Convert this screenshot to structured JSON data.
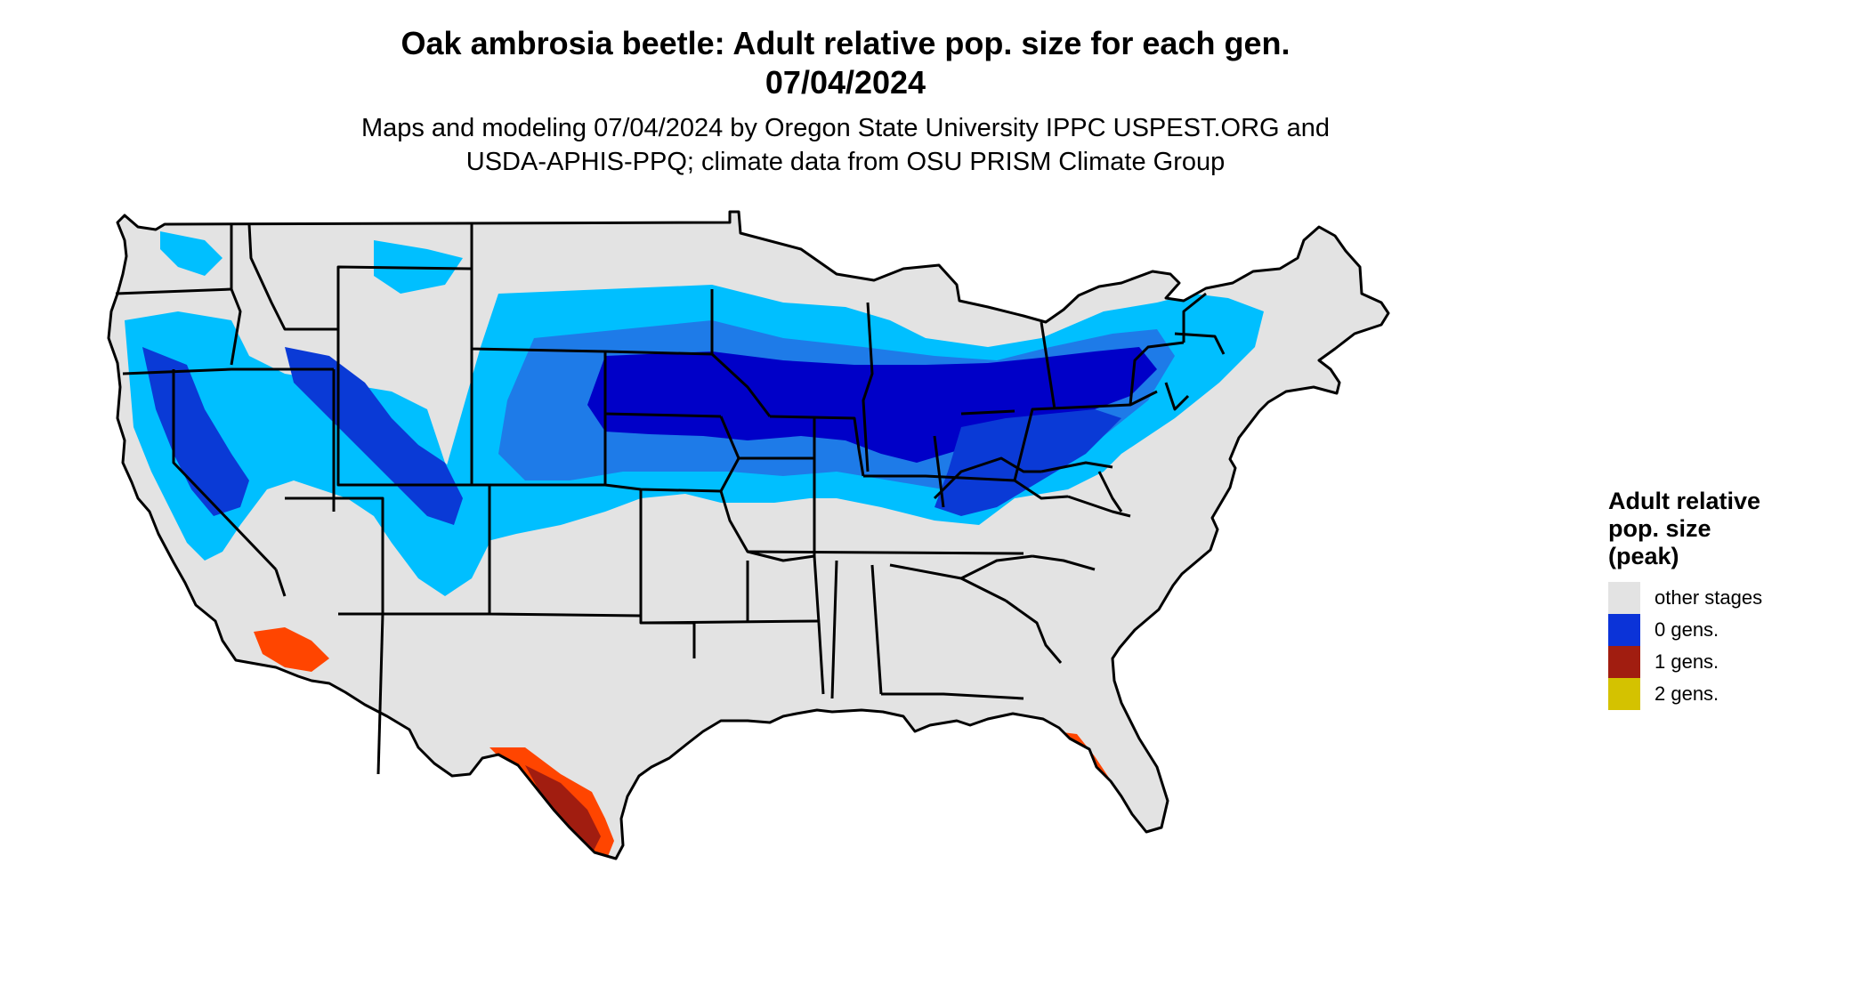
{
  "title_line1": "Oak ambrosia beetle: Adult relative pop. size for each gen.",
  "title_line2": "07/04/2024",
  "subtitle_line1": "Maps and modeling 07/04/2024 by Oregon State University IPPC USPEST.ORG and",
  "subtitle_line2": "USDA-APHIS-PPQ; climate data from OSU PRISM Climate Group",
  "legend": {
    "title": "Adult relative pop. size (peak)",
    "items": [
      {
        "label": "other stages",
        "color": "#e3e3e3"
      },
      {
        "label": "0 gens.",
        "color": "#0b33d8"
      },
      {
        "label": "1 gens.",
        "color": "#a11d10"
      },
      {
        "label": "2 gens.",
        "color": "#d4c200"
      }
    ]
  },
  "map_colors": {
    "background": "#e3e3e3",
    "light_blue": "#00bfff",
    "mid_blue": "#1e7be8",
    "blue": "#0a3ad6",
    "dark_blue": "#0000c8",
    "orange": "#ff4500",
    "dark_red": "#a11d10",
    "border": "#000000"
  }
}
